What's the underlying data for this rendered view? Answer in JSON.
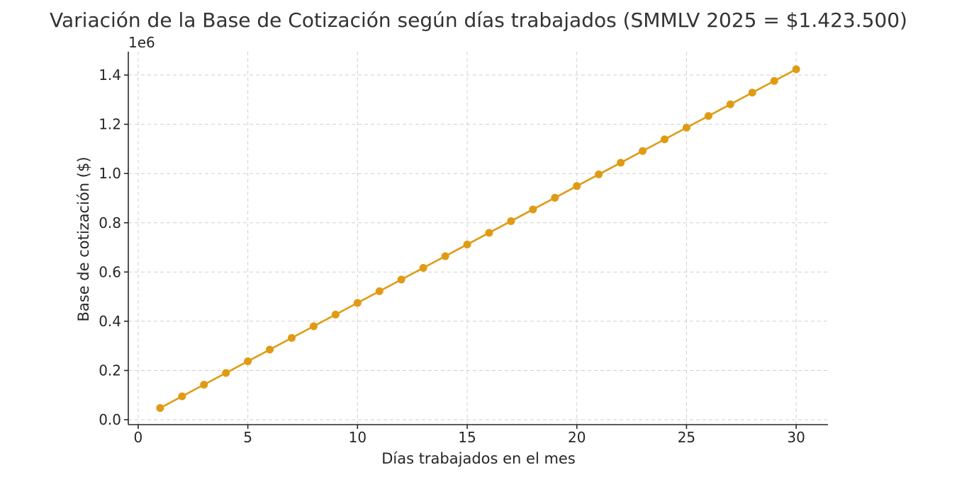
{
  "chart_data": {
    "type": "line",
    "title": "Variación de la Base de Cotización según días trabajados (SMMLV 2025 = $1.423.500)",
    "xlabel": "Días trabajados en el mes",
    "ylabel": "Base de cotización ($)",
    "y_offset_label": "1e6",
    "xlim": [
      -0.45,
      31.45
    ],
    "ylim": [
      -0.02,
      1.495
    ],
    "y_scale_note": "values in millions",
    "x_ticks": [
      0,
      5,
      10,
      15,
      20,
      25,
      30
    ],
    "x_tick_labels": [
      "0",
      "5",
      "10",
      "15",
      "20",
      "25",
      "30"
    ],
    "y_ticks": [
      0.0,
      0.2,
      0.4,
      0.6,
      0.8,
      1.0,
      1.2,
      1.4
    ],
    "y_tick_labels": [
      "0.0",
      "0.2",
      "0.4",
      "0.6",
      "0.8",
      "1.0",
      "1.2",
      "1.4"
    ],
    "grid": true,
    "series": [
      {
        "color": "#e09b14",
        "marker": "circle",
        "x": [
          1,
          2,
          3,
          4,
          5,
          6,
          7,
          8,
          9,
          10,
          11,
          12,
          13,
          14,
          15,
          16,
          17,
          18,
          19,
          20,
          21,
          22,
          23,
          24,
          25,
          26,
          27,
          28,
          29,
          30
        ],
        "y": [
          0.04745,
          0.0949,
          0.14235,
          0.1898,
          0.23725,
          0.2847,
          0.33215,
          0.3796,
          0.42705,
          0.4745,
          0.52195,
          0.5694,
          0.61685,
          0.6643,
          0.71175,
          0.7592,
          0.80665,
          0.8541,
          0.90155,
          0.949,
          0.99645,
          1.0439,
          1.09135,
          1.1388,
          1.18625,
          1.2337,
          1.28115,
          1.3286,
          1.37605,
          1.4235
        ]
      }
    ]
  }
}
